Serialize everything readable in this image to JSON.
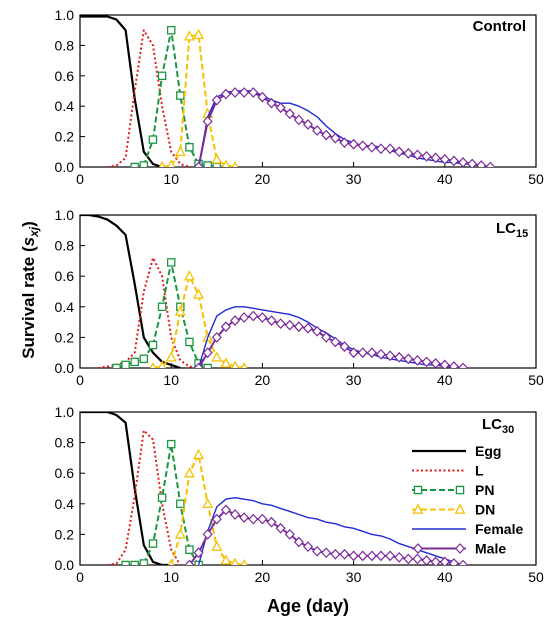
{
  "figure": {
    "ylabel_main": "Survival  rate  (",
    "ylabel_var": "s",
    "ylabel_sub": "xj",
    "ylabel_end": ")",
    "xlabel": "Age (day)"
  },
  "colors": {
    "Egg": "#000000",
    "L": "#e31a1c",
    "PN": "#1a9641",
    "DN": "#f5c000",
    "Female": "#1f2bd6",
    "Male": "#7b2a9a"
  },
  "legend": {
    "placement": "bottom-right of third panel",
    "entries": [
      {
        "key": "Egg",
        "label": "Egg",
        "style": "solid",
        "marker": "none"
      },
      {
        "key": "L",
        "label": "L",
        "style": "dotted",
        "marker": "none"
      },
      {
        "key": "PN",
        "label": "PN",
        "style": "dashed",
        "marker": "square"
      },
      {
        "key": "DN",
        "label": "DN",
        "style": "dashed",
        "marker": "triangle"
      },
      {
        "key": "Female",
        "label": "Female",
        "style": "solid",
        "marker": "none"
      },
      {
        "key": "Male",
        "label": "Male",
        "style": "solid",
        "marker": "diamond"
      }
    ]
  },
  "chart_data": [
    {
      "type": "line",
      "title": "Control",
      "title_sub": "",
      "xlim": [
        0,
        50
      ],
      "ylim": [
        0,
        1.0
      ],
      "xticks": [
        0,
        10,
        20,
        30,
        40,
        50
      ],
      "yticks": [
        0.0,
        0.2,
        0.4,
        0.6,
        0.8,
        1.0
      ],
      "series": [
        {
          "name": "Egg",
          "x": [
            0,
            1,
            2,
            3,
            4,
            5,
            6,
            7,
            8,
            9,
            10
          ],
          "y": [
            0.99,
            0.99,
            0.99,
            0.99,
            0.97,
            0.9,
            0.45,
            0.1,
            0.02,
            0,
            0
          ]
        },
        {
          "name": "L",
          "x": [
            3,
            4,
            5,
            6,
            7,
            8,
            9,
            10,
            11,
            12
          ],
          "y": [
            0,
            0.01,
            0.06,
            0.5,
            0.9,
            0.8,
            0.4,
            0.1,
            0.02,
            0
          ]
        },
        {
          "name": "PN",
          "x": [
            6,
            7,
            8,
            9,
            10,
            11,
            12,
            13,
            14,
            15
          ],
          "y": [
            0,
            0.01,
            0.18,
            0.6,
            0.9,
            0.47,
            0.13,
            0.02,
            0.01,
            0
          ]
        },
        {
          "name": "DN",
          "x": [
            9,
            10,
            11,
            12,
            13,
            14,
            15,
            16,
            17
          ],
          "y": [
            0,
            0.01,
            0.1,
            0.86,
            0.87,
            0.35,
            0.05,
            0.01,
            0
          ]
        },
        {
          "name": "Female",
          "x": [
            13,
            14,
            15,
            16,
            17,
            18,
            19,
            20,
            21,
            22,
            23,
            24,
            25,
            26,
            27,
            28,
            29,
            30,
            31,
            32,
            33,
            34,
            35,
            36,
            37,
            38,
            39,
            40,
            41,
            42,
            43,
            44,
            45
          ],
          "y": [
            0,
            0.33,
            0.46,
            0.49,
            0.5,
            0.5,
            0.5,
            0.47,
            0.44,
            0.42,
            0.42,
            0.4,
            0.37,
            0.33,
            0.27,
            0.22,
            0.18,
            0.16,
            0.14,
            0.14,
            0.13,
            0.11,
            0.09,
            0.08,
            0.06,
            0.05,
            0.04,
            0.03,
            0.03,
            0.02,
            0.02,
            0.01,
            0
          ]
        },
        {
          "name": "Male",
          "x": [
            13,
            14,
            15,
            16,
            17,
            18,
            19,
            20,
            21,
            22,
            23,
            24,
            25,
            26,
            27,
            28,
            29,
            30,
            31,
            32,
            33,
            34,
            35,
            36,
            37,
            38,
            39,
            40,
            41,
            42,
            43,
            44,
            45
          ],
          "y": [
            0,
            0.3,
            0.44,
            0.48,
            0.49,
            0.49,
            0.49,
            0.46,
            0.42,
            0.39,
            0.35,
            0.31,
            0.28,
            0.24,
            0.21,
            0.19,
            0.16,
            0.15,
            0.14,
            0.13,
            0.12,
            0.12,
            0.1,
            0.09,
            0.08,
            0.07,
            0.06,
            0.05,
            0.04,
            0.03,
            0.02,
            0.01,
            0
          ]
        }
      ]
    },
    {
      "type": "line",
      "title": "LC",
      "title_sub": "15",
      "xlim": [
        0,
        50
      ],
      "ylim": [
        0,
        1.0
      ],
      "xticks": [
        0,
        10,
        20,
        30,
        40,
        50
      ],
      "yticks": [
        0.0,
        0.2,
        0.4,
        0.6,
        0.8,
        1.0
      ],
      "series": [
        {
          "name": "Egg",
          "x": [
            0,
            1,
            2,
            3,
            4,
            5,
            6,
            7,
            8,
            9,
            10,
            11
          ],
          "y": [
            1.0,
            1.0,
            0.99,
            0.97,
            0.93,
            0.87,
            0.55,
            0.2,
            0.1,
            0.04,
            0.02,
            0
          ]
        },
        {
          "name": "L",
          "x": [
            2,
            3,
            4,
            5,
            6,
            7,
            8,
            9,
            10,
            11,
            12,
            13
          ],
          "y": [
            0,
            0.01,
            0.02,
            0.04,
            0.1,
            0.5,
            0.72,
            0.6,
            0.2,
            0.05,
            0.01,
            0
          ]
        },
        {
          "name": "PN",
          "x": [
            4,
            5,
            6,
            7,
            8,
            9,
            10,
            11,
            12,
            13,
            14
          ],
          "y": [
            0,
            0.02,
            0.04,
            0.06,
            0.15,
            0.4,
            0.69,
            0.4,
            0.17,
            0.03,
            0
          ]
        },
        {
          "name": "DN",
          "x": [
            8,
            9,
            10,
            11,
            12,
            13,
            14,
            15,
            16,
            17,
            18
          ],
          "y": [
            0,
            0.01,
            0.07,
            0.37,
            0.6,
            0.48,
            0.2,
            0.07,
            0.03,
            0.01,
            0
          ]
        },
        {
          "name": "Female",
          "x": [
            13,
            14,
            15,
            16,
            17,
            18,
            19,
            20,
            21,
            22,
            23,
            24,
            25,
            26,
            27,
            28,
            29,
            30,
            31,
            32,
            33,
            34,
            35,
            36,
            37,
            38,
            39,
            40,
            41,
            42
          ],
          "y": [
            0,
            0.2,
            0.34,
            0.38,
            0.4,
            0.4,
            0.39,
            0.38,
            0.37,
            0.36,
            0.35,
            0.33,
            0.3,
            0.26,
            0.23,
            0.19,
            0.15,
            0.12,
            0.1,
            0.09,
            0.07,
            0.06,
            0.05,
            0.04,
            0.03,
            0.02,
            0.02,
            0.01,
            0.01,
            0
          ]
        },
        {
          "name": "Male",
          "x": [
            13,
            14,
            15,
            16,
            17,
            18,
            19,
            20,
            21,
            22,
            23,
            24,
            25,
            26,
            27,
            28,
            29,
            30,
            31,
            32,
            33,
            34,
            35,
            36,
            37,
            38,
            39,
            40,
            41,
            42
          ],
          "y": [
            0,
            0.1,
            0.2,
            0.27,
            0.31,
            0.33,
            0.34,
            0.33,
            0.31,
            0.29,
            0.28,
            0.27,
            0.26,
            0.24,
            0.2,
            0.17,
            0.14,
            0.1,
            0.1,
            0.1,
            0.09,
            0.08,
            0.07,
            0.06,
            0.05,
            0.04,
            0.03,
            0.02,
            0.01,
            0
          ]
        }
      ]
    },
    {
      "type": "line",
      "title": "LC",
      "title_sub": "30",
      "xlim": [
        0,
        50
      ],
      "ylim": [
        0,
        1.0
      ],
      "xticks": [
        0,
        10,
        20,
        30,
        40,
        50
      ],
      "yticks": [
        0.0,
        0.2,
        0.4,
        0.6,
        0.8,
        1.0
      ],
      "series": [
        {
          "name": "Egg",
          "x": [
            0,
            1,
            2,
            3,
            4,
            5,
            6,
            7,
            8,
            9,
            10
          ],
          "y": [
            1.0,
            1.0,
            1.0,
            1.0,
            0.98,
            0.93,
            0.5,
            0.13,
            0.02,
            0,
            0
          ]
        },
        {
          "name": "L",
          "x": [
            3,
            4,
            5,
            6,
            7,
            8,
            9,
            10,
            11
          ],
          "y": [
            0,
            0.01,
            0.1,
            0.45,
            0.88,
            0.82,
            0.4,
            0.1,
            0
          ]
        },
        {
          "name": "PN",
          "x": [
            5,
            6,
            7,
            8,
            9,
            10,
            11,
            12,
            13
          ],
          "y": [
            0,
            0,
            0.01,
            0.14,
            0.44,
            0.79,
            0.4,
            0.1,
            0
          ]
        },
        {
          "name": "DN",
          "x": [
            10,
            11,
            12,
            13,
            14,
            15,
            16,
            17,
            18
          ],
          "y": [
            0,
            0.2,
            0.6,
            0.72,
            0.4,
            0.12,
            0.03,
            0.01,
            0
          ]
        },
        {
          "name": "Female",
          "x": [
            13,
            14,
            15,
            16,
            17,
            18,
            19,
            20,
            21,
            22,
            23,
            24,
            25,
            26,
            27,
            28,
            29,
            30,
            31,
            32,
            33,
            34,
            35,
            36,
            37,
            38,
            39,
            40,
            41,
            42
          ],
          "y": [
            0,
            0.22,
            0.38,
            0.43,
            0.44,
            0.43,
            0.42,
            0.4,
            0.39,
            0.37,
            0.35,
            0.33,
            0.31,
            0.3,
            0.28,
            0.27,
            0.25,
            0.24,
            0.22,
            0.2,
            0.19,
            0.17,
            0.14,
            0.12,
            0.1,
            0.08,
            0.06,
            0.04,
            0.02,
            0
          ]
        },
        {
          "name": "Male",
          "x": [
            12,
            13,
            14,
            15,
            16,
            17,
            18,
            19,
            20,
            21,
            22,
            23,
            24,
            25,
            26,
            27,
            28,
            29,
            30,
            31,
            32,
            33,
            34,
            35,
            36,
            37,
            38,
            39,
            40,
            41,
            42
          ],
          "y": [
            0,
            0.08,
            0.2,
            0.3,
            0.36,
            0.33,
            0.31,
            0.3,
            0.3,
            0.28,
            0.24,
            0.2,
            0.15,
            0.12,
            0.09,
            0.08,
            0.07,
            0.07,
            0.06,
            0.06,
            0.06,
            0.06,
            0.06,
            0.05,
            0.04,
            0.04,
            0.03,
            0.02,
            0.02,
            0.01,
            0
          ]
        }
      ]
    }
  ]
}
